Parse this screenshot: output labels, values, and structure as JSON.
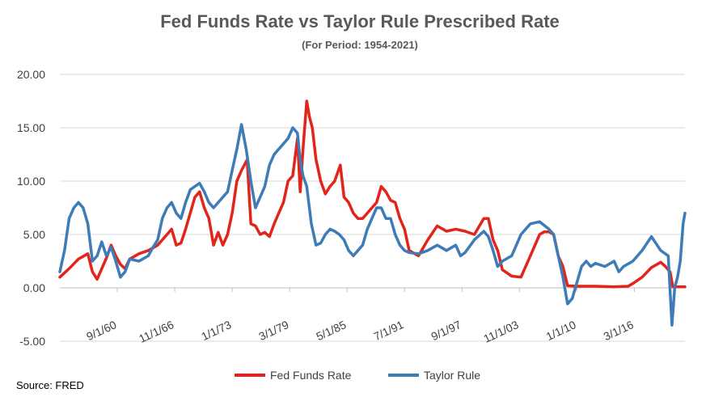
{
  "chart_data": {
    "type": "line",
    "title": "Fed Funds Rate vs Taylor Rule Prescribed Rate",
    "subtitle": "(For Period: 1954-2021)",
    "source": "Source: FRED",
    "ylim": [
      -5,
      20
    ],
    "yticks": [
      "20.00",
      "15.00",
      "10.00",
      "5.00",
      "0.00",
      "-5.00"
    ],
    "ytick_values": [
      20,
      15,
      10,
      5,
      0,
      -5
    ],
    "xlim": [
      1954.5,
      2021.6
    ],
    "xticks": [
      {
        "label": "9/1/60",
        "x": 1960.67
      },
      {
        "label": "11/1/66",
        "x": 1966.83
      },
      {
        "label": "1/1/73",
        "x": 1973.0
      },
      {
        "label": "3/1/79",
        "x": 1979.17
      },
      {
        "label": "5/1/85",
        "x": 1985.33
      },
      {
        "label": "7/1/91",
        "x": 1991.5
      },
      {
        "label": "9/1/97",
        "x": 1997.67
      },
      {
        "label": "11/1/03",
        "x": 2003.83
      },
      {
        "label": "1/1/10",
        "x": 2010.0
      },
      {
        "label": "3/1/16",
        "x": 2016.17
      }
    ],
    "grid": true,
    "legend_position": "bottom",
    "series": [
      {
        "name": "Fed Funds Rate",
        "color": "#e3241b",
        "x": [
          1954.5,
          1955.5,
          1956.5,
          1957.5,
          1958.0,
          1958.5,
          1959.5,
          1960.0,
          1960.5,
          1961.0,
          1961.5,
          1962.0,
          1963.0,
          1964.0,
          1965.0,
          1966.0,
          1966.5,
          1967.0,
          1967.5,
          1968.0,
          1969.0,
          1969.5,
          1970.0,
          1970.5,
          1971.0,
          1971.5,
          1972.0,
          1972.5,
          1973.0,
          1973.5,
          1974.0,
          1974.6,
          1975.0,
          1975.5,
          1976.0,
          1976.5,
          1977.0,
          1977.5,
          1978.0,
          1978.5,
          1979.0,
          1979.5,
          1980.0,
          1980.3,
          1980.6,
          1981.0,
          1981.3,
          1981.6,
          1982.0,
          1982.5,
          1983.0,
          1983.5,
          1984.0,
          1984.6,
          1985.0,
          1985.5,
          1986.0,
          1986.5,
          1987.0,
          1987.5,
          1988.0,
          1988.5,
          1989.0,
          1989.5,
          1990.0,
          1990.5,
          1991.0,
          1991.5,
          1992.0,
          1993.0,
          1994.0,
          1995.0,
          1996.0,
          1997.0,
          1998.0,
          1999.0,
          2000.0,
          2000.5,
          2001.0,
          2001.5,
          2002.0,
          2003.0,
          2004.0,
          2005.0,
          2006.0,
          2006.5,
          2007.0,
          2007.5,
          2008.0,
          2008.5,
          2009.0,
          2010.0,
          2012.0,
          2014.0,
          2015.5,
          2016.0,
          2017.0,
          2018.0,
          2019.0,
          2019.5,
          2020.0,
          2020.3,
          2021.0,
          2021.6
        ],
        "y": [
          1.0,
          1.8,
          2.7,
          3.2,
          1.5,
          0.8,
          2.8,
          4.0,
          3.0,
          2.2,
          1.8,
          2.7,
          3.2,
          3.5,
          4.0,
          5.0,
          5.5,
          4.0,
          4.2,
          5.5,
          8.5,
          9.0,
          7.5,
          6.5,
          4.0,
          5.2,
          4.0,
          5.0,
          7.0,
          10.0,
          11.0,
          12.0,
          6.0,
          5.8,
          5.0,
          5.2,
          4.8,
          6.0,
          7.0,
          8.0,
          10.0,
          10.5,
          14.0,
          9.0,
          13.0,
          17.5,
          16.0,
          15.0,
          12.0,
          10.0,
          8.8,
          9.5,
          10.0,
          11.5,
          8.5,
          8.0,
          7.0,
          6.5,
          6.5,
          7.0,
          7.5,
          8.0,
          9.5,
          9.0,
          8.2,
          8.0,
          6.5,
          5.5,
          3.5,
          3.0,
          4.5,
          5.8,
          5.3,
          5.5,
          5.3,
          5.0,
          6.5,
          6.5,
          4.5,
          3.5,
          1.7,
          1.1,
          1.0,
          3.0,
          5.0,
          5.25,
          5.25,
          5.0,
          3.0,
          2.0,
          0.2,
          0.15,
          0.15,
          0.1,
          0.15,
          0.4,
          1.0,
          1.9,
          2.4,
          2.0,
          1.5,
          0.1,
          0.1,
          0.1
        ]
      },
      {
        "name": "Taylor Rule",
        "color": "#3e7cb8",
        "x": [
          1954.5,
          1955.0,
          1955.5,
          1956.0,
          1956.5,
          1957.0,
          1957.5,
          1958.0,
          1958.5,
          1959.0,
          1959.5,
          1960.0,
          1960.5,
          1961.0,
          1961.5,
          1962.0,
          1963.0,
          1964.0,
          1964.5,
          1965.0,
          1965.5,
          1966.0,
          1966.5,
          1967.0,
          1967.5,
          1968.0,
          1968.5,
          1969.0,
          1969.5,
          1970.0,
          1970.5,
          1971.0,
          1971.5,
          1972.0,
          1972.5,
          1973.0,
          1973.5,
          1974.0,
          1974.5,
          1975.0,
          1975.5,
          1976.0,
          1976.5,
          1977.0,
          1977.5,
          1978.0,
          1978.5,
          1979.0,
          1979.5,
          1980.0,
          1980.3,
          1980.6,
          1981.0,
          1981.5,
          1982.0,
          1982.5,
          1983.0,
          1983.5,
          1984.0,
          1984.5,
          1985.0,
          1985.5,
          1986.0,
          1986.5,
          1987.0,
          1987.5,
          1988.0,
          1988.5,
          1989.0,
          1989.5,
          1990.0,
          1990.5,
          1991.0,
          1991.5,
          1992.0,
          1993.0,
          1994.0,
          1995.0,
          1996.0,
          1997.0,
          1997.5,
          1998.0,
          1999.0,
          2000.0,
          2000.5,
          2001.0,
          2001.5,
          2002.0,
          2003.0,
          2004.0,
          2005.0,
          2006.0,
          2007.0,
          2007.5,
          2008.0,
          2008.5,
          2009.0,
          2009.5,
          2010.0,
          2010.5,
          2011.0,
          2011.5,
          2012.0,
          2013.0,
          2014.0,
          2014.5,
          2015.0,
          2016.0,
          2017.0,
          2018.0,
          2019.0,
          2019.8,
          2020.2,
          2020.5,
          2020.8,
          2021.1,
          2021.4,
          2021.6
        ],
        "y": [
          1.5,
          3.5,
          6.5,
          7.5,
          8.0,
          7.5,
          6.0,
          2.5,
          3.0,
          4.3,
          3.0,
          3.8,
          2.5,
          1.0,
          1.5,
          2.7,
          2.5,
          3.0,
          3.8,
          4.5,
          6.5,
          7.5,
          8.0,
          7.0,
          6.5,
          8.0,
          9.2,
          9.5,
          9.8,
          9.0,
          8.0,
          7.5,
          8.0,
          8.5,
          9.0,
          11.0,
          13.0,
          15.3,
          13.0,
          10.0,
          7.5,
          8.5,
          9.5,
          11.5,
          12.5,
          13.0,
          13.5,
          14.0,
          15.0,
          14.5,
          12.0,
          10.5,
          9.5,
          6.0,
          4.0,
          4.2,
          5.0,
          5.5,
          5.3,
          5.0,
          4.5,
          3.5,
          3.0,
          3.5,
          4.0,
          5.5,
          6.5,
          7.5,
          7.5,
          6.5,
          6.5,
          5.0,
          4.0,
          3.5,
          3.3,
          3.2,
          3.5,
          4.0,
          3.5,
          4.0,
          3.0,
          3.3,
          4.5,
          5.3,
          4.8,
          3.5,
          2.0,
          2.5,
          3.0,
          5.0,
          6.0,
          6.2,
          5.5,
          5.0,
          3.0,
          1.0,
          -1.5,
          -1.0,
          0.5,
          2.0,
          2.5,
          2.0,
          2.3,
          2.0,
          2.5,
          1.5,
          2.0,
          2.5,
          3.5,
          4.8,
          3.5,
          3.0,
          -3.5,
          0.0,
          1.0,
          2.5,
          6.0,
          7.0
        ]
      }
    ]
  }
}
